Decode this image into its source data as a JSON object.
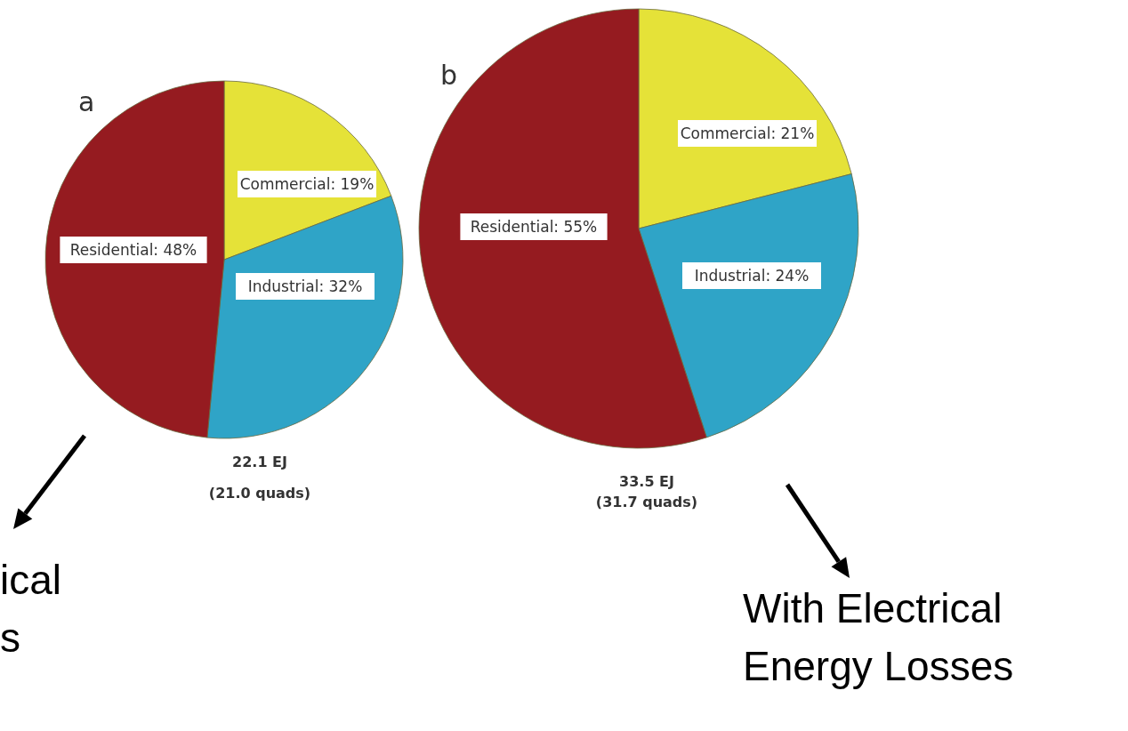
{
  "chart_data": [
    {
      "type": "pie",
      "title": "a",
      "categories": [
        "Commercial",
        "Industrial",
        "Residential"
      ],
      "values": [
        19,
        32,
        48
      ],
      "value_labels": [
        "19%",
        "32%",
        "48%"
      ],
      "colors": [
        "#e5e238",
        "#2fa4c7",
        "#951b20"
      ],
      "annotations": [
        "22.1 EJ",
        "(21.0 quads)",
        "ical",
        "s"
      ]
    },
    {
      "type": "pie",
      "title": "b",
      "categories": [
        "Commercial",
        "Industrial",
        "Residential"
      ],
      "values": [
        21,
        24,
        55
      ],
      "value_labels": [
        "21%",
        "24%",
        "55%"
      ],
      "colors": [
        "#e5e238",
        "#2fa4c7",
        "#951b20"
      ],
      "annotations": [
        "33.5 EJ",
        "(31.7 quads)",
        "With Electrical",
        "Energy Losses"
      ]
    }
  ]
}
